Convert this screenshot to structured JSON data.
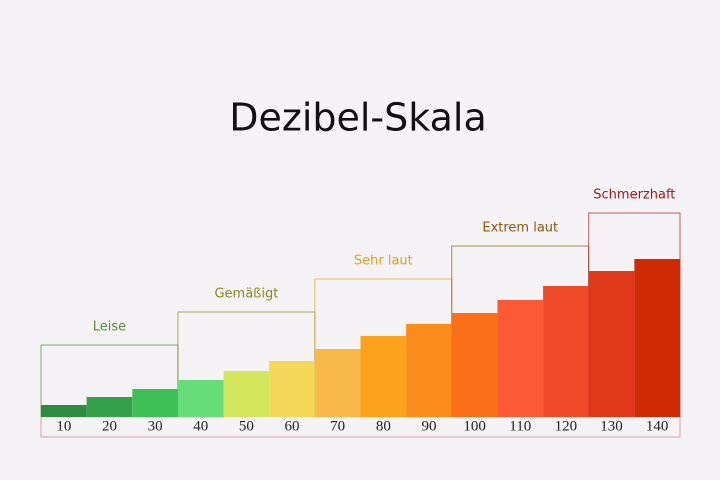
{
  "chart_data": {
    "type": "bar",
    "title": "Dezibel-Skala",
    "categories": [
      "10",
      "20",
      "30",
      "40",
      "50",
      "60",
      "70",
      "80",
      "90",
      "100",
      "110",
      "120",
      "130",
      "140"
    ],
    "values": [
      12,
      20,
      28,
      37,
      46,
      56,
      68,
      81,
      93,
      104,
      117,
      131,
      146,
      158
    ],
    "colors": [
      "#2e8b40",
      "#35a14a",
      "#3ec057",
      "#66dd7a",
      "#d4e65c",
      "#f4d85a",
      "#f9b84a",
      "#fca21c",
      "#fb8c1a",
      "#fa6f18",
      "#fb5a34",
      "#ef4a2a",
      "#e0381a",
      "#d02a05"
    ],
    "groups": [
      {
        "label": "Leise",
        "color": "#5a8a3a",
        "bars": 3
      },
      {
        "label": "Gemäßigt",
        "color": "#8a8a20",
        "bars": 3
      },
      {
        "label": "Sehr laut",
        "color": "#e0a020",
        "bars": 3
      },
      {
        "label": "Extrem laut",
        "color": "#8a5a10",
        "bars": 3
      },
      {
        "label": "Schmerzhaft",
        "color": "#a01818",
        "bars": 2
      }
    ]
  }
}
